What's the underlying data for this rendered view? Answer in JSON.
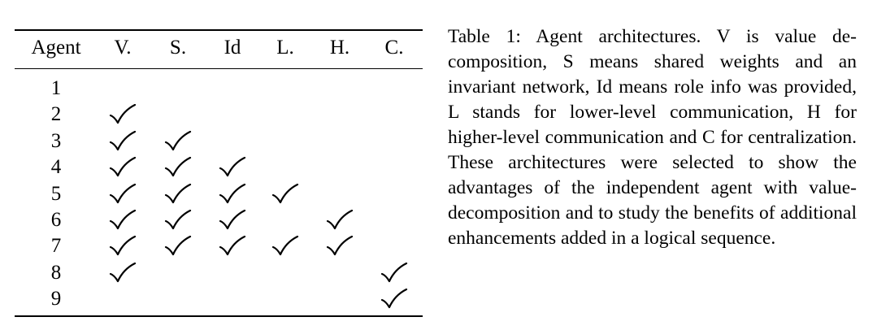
{
  "table": {
    "headers": [
      "Agent",
      "V.",
      "S.",
      "Id",
      "L.",
      "H.",
      "C."
    ],
    "rows": [
      {
        "agent": "1",
        "checks": [
          false,
          false,
          false,
          false,
          false,
          false
        ]
      },
      {
        "agent": "2",
        "checks": [
          true,
          false,
          false,
          false,
          false,
          false
        ]
      },
      {
        "agent": "3",
        "checks": [
          true,
          true,
          false,
          false,
          false,
          false
        ]
      },
      {
        "agent": "4",
        "checks": [
          true,
          true,
          true,
          false,
          false,
          false
        ]
      },
      {
        "agent": "5",
        "checks": [
          true,
          true,
          true,
          true,
          false,
          false
        ]
      },
      {
        "agent": "6",
        "checks": [
          true,
          true,
          true,
          false,
          true,
          false
        ]
      },
      {
        "agent": "7",
        "checks": [
          true,
          true,
          true,
          true,
          true,
          false
        ]
      },
      {
        "agent": "8",
        "checks": [
          true,
          false,
          false,
          false,
          false,
          true
        ]
      },
      {
        "agent": "9",
        "checks": [
          false,
          false,
          false,
          false,
          false,
          true
        ]
      }
    ]
  },
  "caption": {
    "label": "Table 1:",
    "text": " Agent architectures. V is value de­composition, S means shared weights and an invariant network, Id means role info was provided, L stands for lower-level commu­nication, H for higher-level communication and C for centralization. These architectures were selected to show the advantages of the independent agent with value-decomposition and to study the benefits of additional en­hancements added in a logical sequence."
  }
}
